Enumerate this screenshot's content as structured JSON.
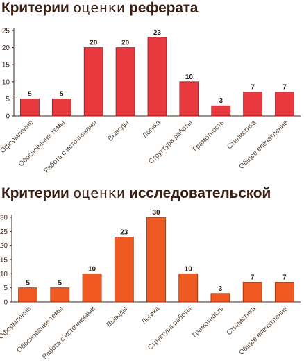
{
  "charts": [
    {
      "title_part1": "Критерии",
      "title_part2": "оценки",
      "title_part3": "реферата"
    },
    {
      "title_part1": "Критерии",
      "title_part2": "оценки",
      "title_part3": "исследовательской"
    }
  ],
  "chart_data": [
    {
      "type": "bar",
      "categories": [
        "Оформление",
        "Обоснование темы",
        "Работа с источниками",
        "Выводы",
        "Логика",
        "Структура работы",
        "Грамотность",
        "Стилистика",
        "Общее впечатление"
      ],
      "values": [
        5,
        5,
        20,
        20,
        23,
        10,
        3,
        7,
        7
      ],
      "yticks": [
        0,
        5,
        10,
        15,
        20,
        25
      ],
      "ylim": [
        0,
        25
      ],
      "bar_color": "#e8393f",
      "bar_edge": "#8a1c22",
      "grid": false
    },
    {
      "type": "bar",
      "categories": [
        "Оформление",
        "Обоснование темы",
        "Работа с источниками",
        "Выводы",
        "Логика",
        "Структура работы",
        "Грамотность",
        "Стилистика",
        "Общее впечатление"
      ],
      "values": [
        5,
        5,
        10,
        23,
        30,
        10,
        3,
        7,
        7
      ],
      "yticks": [
        0,
        5,
        10,
        15,
        20,
        25,
        30
      ],
      "ylim": [
        0,
        30
      ],
      "bar_color": "#ef5a22",
      "bar_edge": "#8f3210",
      "grid": false
    }
  ]
}
